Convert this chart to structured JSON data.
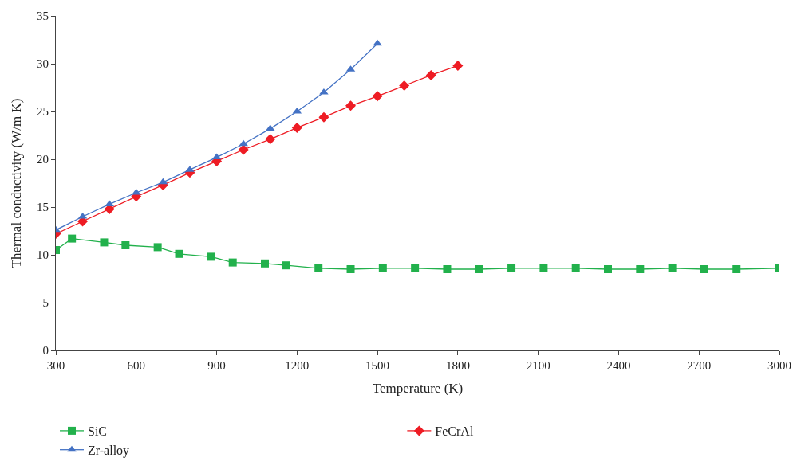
{
  "chart_data": {
    "type": "line",
    "xlabel": "Temperature (K)",
    "ylabel": "Thermal conductivity (W/m K)",
    "xlim": [
      300,
      3000
    ],
    "xticks": [
      300,
      600,
      900,
      1200,
      1500,
      1800,
      2100,
      2400,
      2700,
      3000
    ],
    "ylim": [
      0,
      35
    ],
    "yticks": [
      0,
      5,
      10,
      15,
      20,
      25,
      30,
      35
    ],
    "legend": "bottom",
    "series": [
      {
        "name": "SiC",
        "color": "#22b14c",
        "marker": "square",
        "x": [
          300,
          360,
          480,
          560,
          680,
          760,
          880,
          960,
          1080,
          1160,
          1280,
          1400,
          1520,
          1640,
          1760,
          1880,
          2000,
          2120,
          2240,
          2360,
          2480,
          2600,
          2720,
          2840,
          3000
        ],
        "values": [
          10.5,
          11.7,
          11.3,
          11.0,
          10.8,
          10.1,
          9.8,
          9.2,
          9.1,
          8.9,
          8.6,
          8.5,
          8.6,
          8.6,
          8.5,
          8.5,
          8.6,
          8.6,
          8.6,
          8.5,
          8.5,
          8.6,
          8.5,
          8.5,
          8.6
        ]
      },
      {
        "name": "FeCrAl",
        "color": "#ee1c24",
        "marker": "diamond",
        "x": [
          300,
          400,
          500,
          600,
          700,
          800,
          900,
          1000,
          1100,
          1200,
          1300,
          1400,
          1500,
          1600,
          1700,
          1800
        ],
        "values": [
          12.2,
          13.5,
          14.8,
          16.1,
          17.3,
          18.6,
          19.8,
          21.0,
          22.1,
          23.3,
          24.4,
          25.6,
          26.6,
          27.7,
          28.8,
          29.8
        ]
      },
      {
        "name": "Zr-alloy",
        "color": "#4472c4",
        "marker": "triangle",
        "x": [
          300,
          400,
          500,
          600,
          700,
          800,
          900,
          1000,
          1100,
          1200,
          1300,
          1400,
          1500
        ],
        "values": [
          12.6,
          14.0,
          15.3,
          16.5,
          17.6,
          18.9,
          20.2,
          21.6,
          23.2,
          25.0,
          27.0,
          29.4,
          32.1
        ]
      }
    ]
  }
}
